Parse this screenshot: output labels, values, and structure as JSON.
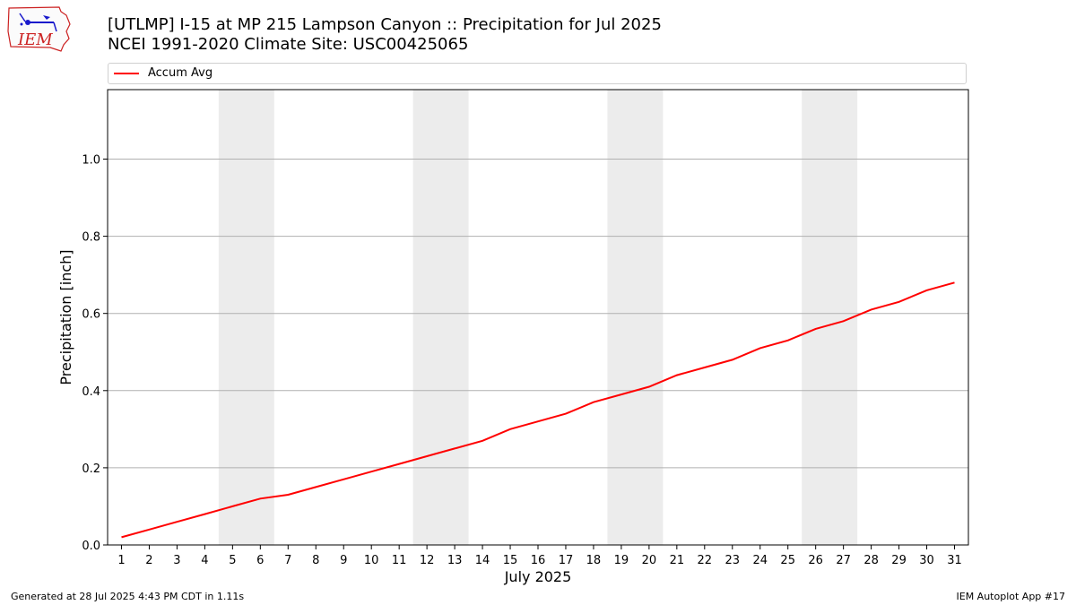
{
  "header": {
    "title_line1": "[UTLMP] I-15 at MP 215 Lampson Canyon  :: Precipitation for Jul 2025",
    "title_line2": "NCEI 1991-2020 Climate Site: USC00425065"
  },
  "logo": {
    "text": "IEM",
    "icon": "iem-logo-icon",
    "color": "#cc2222",
    "accent": "#1a1acc"
  },
  "footer": {
    "left": "Generated at 28 Jul 2025 4:43 PM CDT in 1.11s",
    "right": "IEM Autoplot App #17"
  },
  "chart_data": {
    "type": "line",
    "xlabel": "July 2025",
    "ylabel": "Precipitation [inch]",
    "ylim": [
      0,
      1.18
    ],
    "xlim": [
      0.5,
      31.5
    ],
    "yticks": [
      0.0,
      0.2,
      0.4,
      0.6,
      0.8,
      1.0
    ],
    "ytick_labels": [
      "0.0",
      "0.2",
      "0.4",
      "0.6",
      "0.8",
      "1.0"
    ],
    "x": [
      1,
      2,
      3,
      4,
      5,
      6,
      7,
      8,
      9,
      10,
      11,
      12,
      13,
      14,
      15,
      16,
      17,
      18,
      19,
      20,
      21,
      22,
      23,
      24,
      25,
      26,
      27,
      28,
      29,
      30,
      31
    ],
    "x_tick_labels": [
      "1",
      "2",
      "3",
      "4",
      "5",
      "6",
      "7",
      "8",
      "9",
      "10",
      "11",
      "12",
      "13",
      "14",
      "15",
      "16",
      "17",
      "18",
      "19",
      "20",
      "21",
      "22",
      "23",
      "24",
      "25",
      "26",
      "27",
      "28",
      "29",
      "30",
      "31"
    ],
    "grid": "horizontal",
    "legend_position": "top",
    "weekend_bands": [
      [
        5,
        6
      ],
      [
        12,
        13
      ],
      [
        19,
        20
      ],
      [
        26,
        27
      ]
    ],
    "band_color": "#ececec",
    "series": [
      {
        "name": "Accum Avg",
        "color": "#ff0000",
        "values": [
          0.02,
          0.04,
          0.06,
          0.08,
          0.1,
          0.12,
          0.13,
          0.15,
          0.17,
          0.19,
          0.21,
          0.23,
          0.25,
          0.27,
          0.3,
          0.32,
          0.34,
          0.37,
          0.39,
          0.41,
          0.44,
          0.46,
          0.48,
          0.51,
          0.53,
          0.56,
          0.58,
          0.61,
          0.63,
          0.66,
          0.68
        ]
      }
    ]
  }
}
